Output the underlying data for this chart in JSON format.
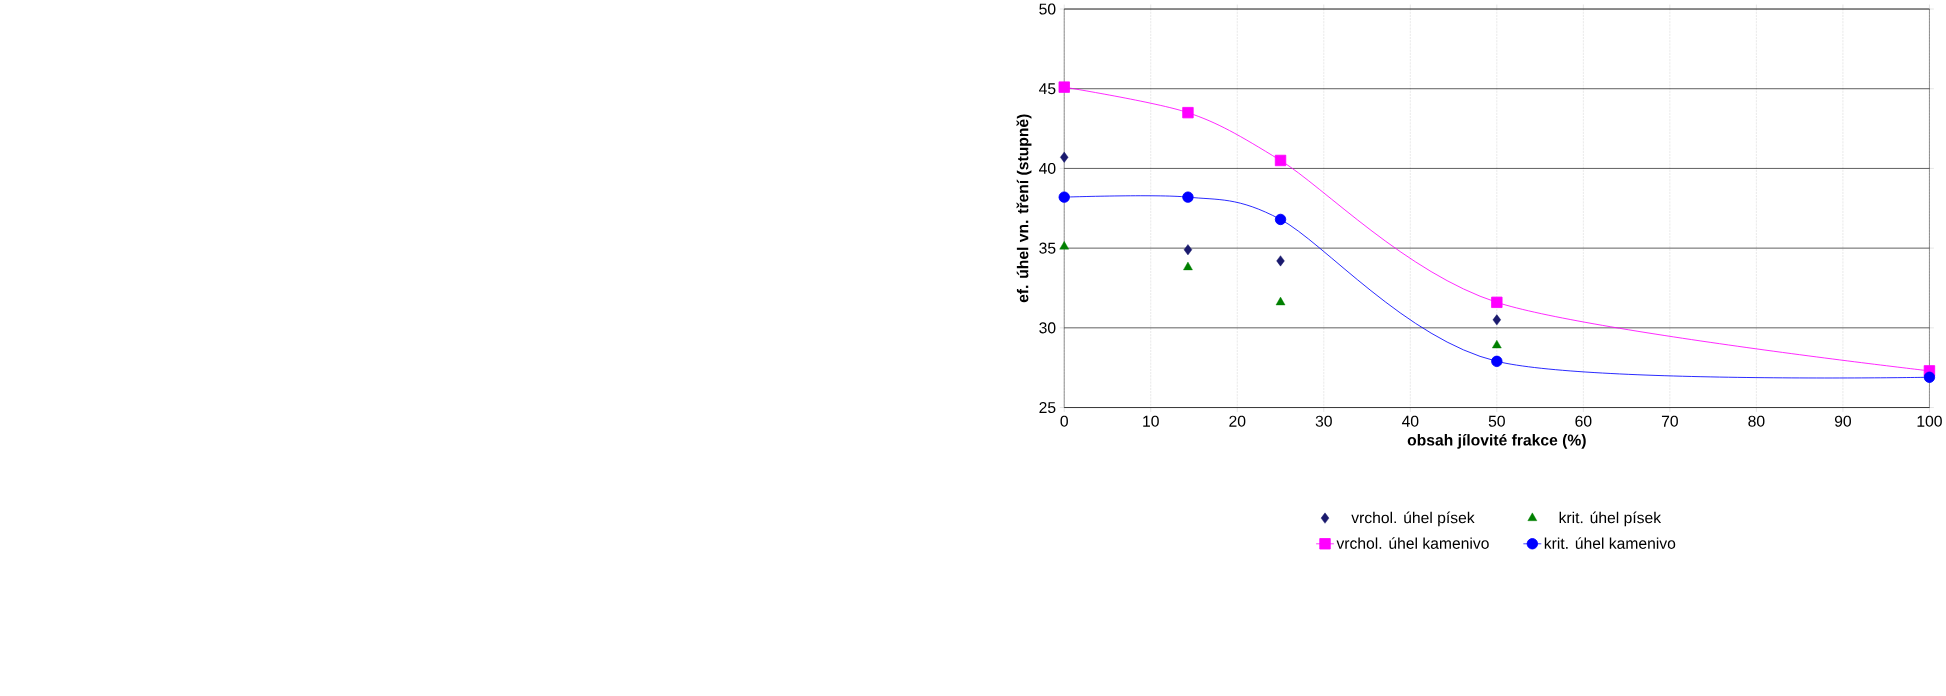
{
  "chart_data": {
    "type": "line",
    "xlabel": "obsah jílovité frakce (%)",
    "ylabel": "ef. úhel vn. tření (stupně)",
    "x": [
      0,
      14.3,
      25,
      50,
      100
    ],
    "series": [
      {
        "name": "vrchol. úhel písek",
        "type": "scatter",
        "marker": "diamond",
        "color": "#1a1a6e",
        "values": [
          40.7,
          34.9,
          34.2,
          30.5,
          null
        ]
      },
      {
        "name": "krit. úhel písek",
        "type": "scatter",
        "marker": "triangle",
        "color": "#008000",
        "values": [
          35.1,
          33.8,
          31.6,
          28.9,
          null
        ]
      },
      {
        "name": "vrchol. úhel kamenivo",
        "marker": "square",
        "color": "#ff00ff",
        "values": [
          45.1,
          43.5,
          40.5,
          31.6,
          27.3
        ]
      },
      {
        "name": "krit. úhel kamenivo",
        "marker": "circle",
        "color": "#0000ff",
        "values": [
          38.2,
          38.2,
          36.8,
          27.9,
          26.9
        ]
      }
    ],
    "xlim": [
      0,
      100
    ],
    "xticks": [
      0,
      10,
      20,
      30,
      40,
      50,
      60,
      70,
      80,
      90,
      100
    ],
    "ylim": [
      25,
      50
    ],
    "yticks": [
      25,
      30,
      35,
      40,
      45,
      50
    ],
    "grid": true,
    "legend": "bottom",
    "line_style": "solid"
  }
}
